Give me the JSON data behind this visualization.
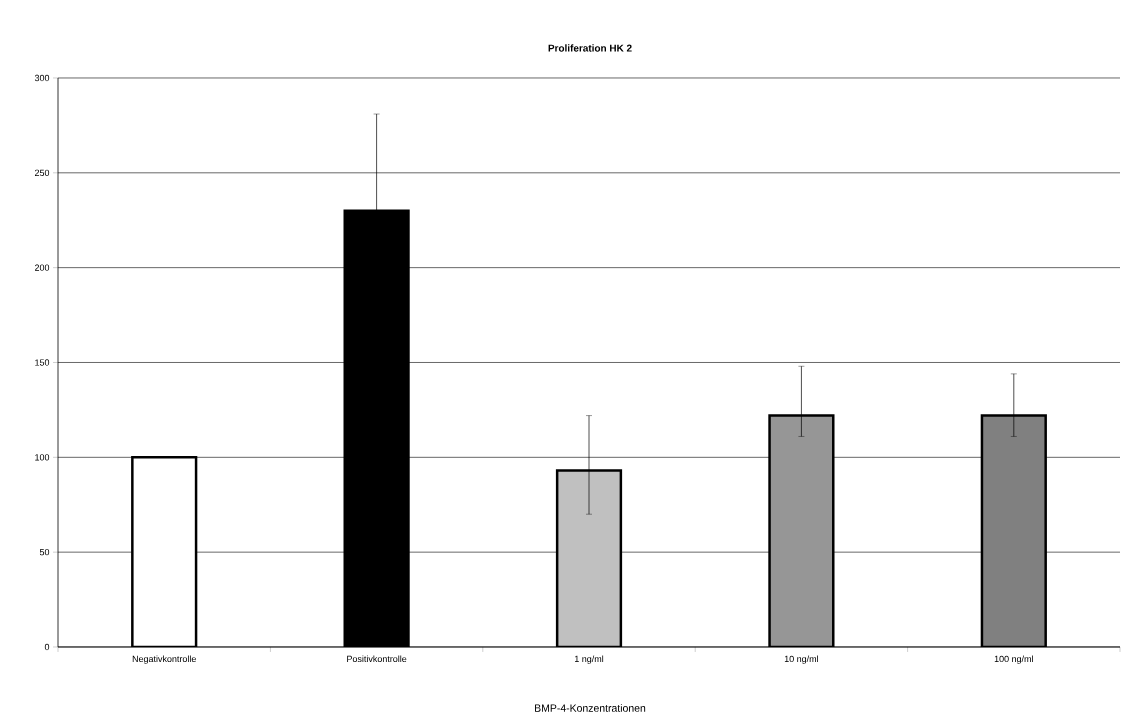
{
  "chart_data": {
    "type": "bar",
    "title": "Proliferation HK 2",
    "xlabel": "BMP-4-Konzentrationen",
    "categories": [
      "Negativkontrolle",
      "Positivkontrolle",
      "1 ng/ml",
      "10 ng/ml",
      "100 ng/ml"
    ],
    "values": [
      100,
      230,
      93,
      122,
      122
    ],
    "colors": [
      "#ffffff",
      "#000000",
      "#c0c0c0",
      "#969696",
      "#808080"
    ],
    "errors": [
      null,
      51,
      [
        70,
        122
      ],
      [
        111,
        148
      ],
      [
        111,
        144
      ]
    ],
    "ylim": [
      0,
      300
    ],
    "yticks": [
      0,
      50,
      100,
      150,
      200,
      250,
      300
    ],
    "grid": "y"
  }
}
